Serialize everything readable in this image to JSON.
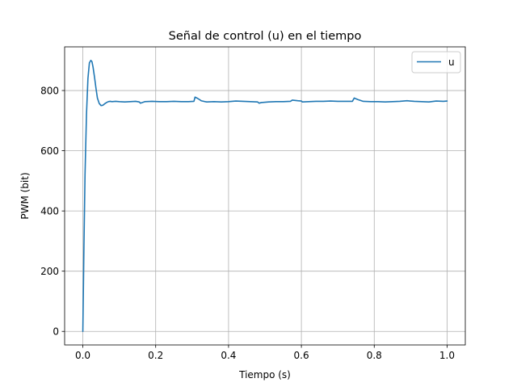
{
  "chart_data": {
    "type": "line",
    "title": "Señal de control (u) en el tiempo",
    "xlabel": "Tiempo (s)",
    "ylabel": "PWM (bit)",
    "xlim": [
      -0.05,
      1.05
    ],
    "ylim": [
      -45,
      945
    ],
    "xticks": [
      0.0,
      0.2,
      0.4,
      0.6,
      0.8,
      1.0
    ],
    "xtick_labels": [
      "0.0",
      "0.2",
      "0.4",
      "0.6",
      "0.8",
      "1.0"
    ],
    "yticks": [
      0,
      200,
      400,
      600,
      800
    ],
    "ytick_labels": [
      "0",
      "200",
      "400",
      "600",
      "800"
    ],
    "grid": true,
    "legend_position": "upper-right",
    "series": [
      {
        "name": "u",
        "color": "#1f77b4",
        "x": [
          0.0,
          0.003,
          0.006,
          0.01,
          0.014,
          0.018,
          0.022,
          0.025,
          0.028,
          0.032,
          0.036,
          0.04,
          0.045,
          0.05,
          0.055,
          0.06,
          0.065,
          0.07,
          0.075,
          0.08,
          0.09,
          0.1,
          0.115,
          0.13,
          0.145,
          0.155,
          0.158,
          0.17,
          0.19,
          0.21,
          0.23,
          0.25,
          0.27,
          0.29,
          0.305,
          0.308,
          0.315,
          0.325,
          0.34,
          0.36,
          0.38,
          0.4,
          0.42,
          0.44,
          0.46,
          0.48,
          0.484,
          0.49,
          0.51,
          0.53,
          0.55,
          0.57,
          0.575,
          0.59,
          0.6,
          0.603,
          0.62,
          0.64,
          0.66,
          0.68,
          0.7,
          0.72,
          0.74,
          0.745,
          0.755,
          0.77,
          0.79,
          0.81,
          0.83,
          0.85,
          0.87,
          0.89,
          0.91,
          0.93,
          0.95,
          0.97,
          0.99,
          1.0
        ],
        "y": [
          0,
          280,
          520,
          720,
          840,
          892,
          900,
          896,
          878,
          845,
          808,
          775,
          757,
          750,
          751,
          756,
          760,
          763,
          764,
          763,
          764,
          763,
          762,
          763,
          764,
          762,
          758,
          763,
          764,
          763,
          763,
          764,
          763,
          763,
          764,
          778,
          774,
          766,
          762,
          763,
          762,
          763,
          765,
          764,
          763,
          762,
          758,
          760,
          762,
          763,
          763,
          764,
          768,
          766,
          765,
          762,
          763,
          764,
          764,
          765,
          764,
          764,
          764,
          775,
          770,
          764,
          763,
          763,
          762,
          763,
          764,
          766,
          764,
          763,
          762,
          765,
          764,
          765
        ]
      }
    ]
  }
}
